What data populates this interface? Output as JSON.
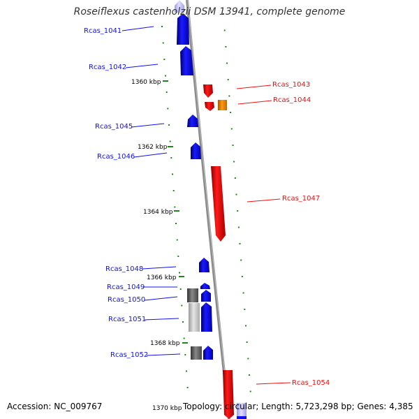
{
  "title": {
    "organism": "Roseiflexus castenholzii DSM 13941",
    "suffix": ", complete genome"
  },
  "ruler": {
    "unit": "kbp",
    "labels": [
      {
        "kbp": 1360,
        "text": "1360 kbp"
      },
      {
        "kbp": 1362,
        "text": "1362 kbp"
      },
      {
        "kbp": 1364,
        "text": "1364 kbp"
      },
      {
        "kbp": 1366,
        "text": "1366 kbp"
      },
      {
        "kbp": 1368,
        "text": "1368 kbp"
      },
      {
        "kbp": 1370,
        "text": "1370 kbp"
      }
    ]
  },
  "genes": [
    {
      "id": "Rcas_1041",
      "strand": "+",
      "color": "#1010ee"
    },
    {
      "id": "Rcas_1042",
      "strand": "+",
      "color": "#1010ee"
    },
    {
      "id": "Rcas_1043",
      "strand": "-",
      "color": "#ee1010"
    },
    {
      "id": "Rcas_1044",
      "strand": "-",
      "color": "#f08a00"
    },
    {
      "id": "Rcas_1045",
      "strand": "+",
      "color": "#1010ee"
    },
    {
      "id": "Rcas_1046",
      "strand": "+",
      "color": "#1010ee"
    },
    {
      "id": "Rcas_1047",
      "strand": "-",
      "color": "#ee1010"
    },
    {
      "id": "Rcas_1048",
      "strand": "+",
      "color": "#1010ee"
    },
    {
      "id": "Rcas_1049",
      "strand": "+",
      "color": "#1010ee"
    },
    {
      "id": "Rcas_1050",
      "strand": "+",
      "color": "#1010ee"
    },
    {
      "id": "Rcas_1051",
      "strand": "+",
      "color": "#1010ee"
    },
    {
      "id": "Rcas_1052",
      "strand": "+",
      "color": "#1010ee"
    },
    {
      "id": "Rcas_1054",
      "strand": "-",
      "color": "#ee1010"
    }
  ],
  "colors": {
    "forward_gene": "#1010ee",
    "reverse_gene": "#ee1010",
    "highlight_gene": "#f08a00",
    "grey_feature": "#666666",
    "light_grey_feature": "#bbbbbb",
    "backbone": "#8c8c8c",
    "ticks": "#1a8a1a"
  },
  "footer": {
    "accession": "Accession: NC_009767",
    "topology": "Topology: circular; Length: 5,723,298 bp; Genes: 4,385"
  }
}
